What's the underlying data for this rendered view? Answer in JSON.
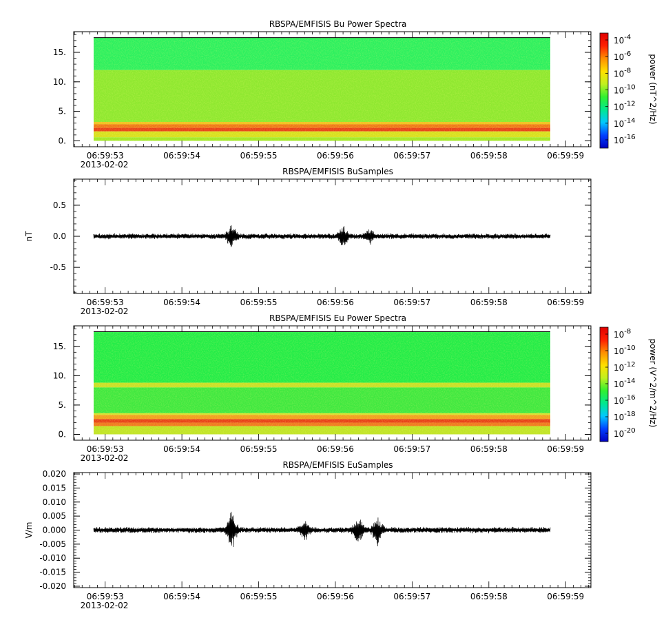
{
  "chart_data": [
    {
      "type": "heatmap",
      "title": "RBSPA/EMFISIS  Bu Power Spectra",
      "ylabel": "",
      "ylim": [
        -1,
        18.5
      ],
      "yticks": [
        "0.",
        "5.",
        "10.",
        "15."
      ],
      "ytick_values": [
        0,
        5,
        10,
        15
      ],
      "xticks": [
        "06:59:53",
        "06:59:54",
        "06:59:55",
        "06:59:56",
        "06:59:57",
        "06:59:58",
        "06:59:59"
      ],
      "xdate": "2013-02-02",
      "data_range": [
        "06:59:52.85",
        "06:59:58.80"
      ],
      "freq_range": [
        0,
        17.5
      ],
      "bands": [
        {
          "from": 12.0,
          "to": 17.5,
          "color": "#2df05f"
        },
        {
          "from": 3.2,
          "to": 12.0,
          "color": "#8fe830"
        },
        {
          "from": 2.8,
          "to": 3.2,
          "color": "#f0c020"
        },
        {
          "from": 2.2,
          "to": 2.8,
          "color": "#f07818"
        },
        {
          "from": 1.6,
          "to": 2.2,
          "color": "#e84018"
        },
        {
          "from": 0.6,
          "to": 1.6,
          "color": "#d8e020"
        },
        {
          "from": 0.0,
          "to": 0.6,
          "color": "#a0e828"
        }
      ],
      "colorbar": {
        "label": "power (nT^2/Hz)",
        "ticks": [
          {
            "base": "10",
            "exp": "-4"
          },
          {
            "base": "10",
            "exp": "-6"
          },
          {
            "base": "10",
            "exp": "-8"
          },
          {
            "base": "10",
            "exp": "-10"
          },
          {
            "base": "10",
            "exp": "-12"
          },
          {
            "base": "10",
            "exp": "-14"
          },
          {
            "base": "10",
            "exp": "-16"
          }
        ]
      }
    },
    {
      "type": "line",
      "title": "RBSPA/EMFISIS  BuSamples",
      "ylabel": "nT",
      "ylim": [
        -0.92,
        0.92
      ],
      "yticks": [
        "0.5",
        "0.0",
        "-0.5"
      ],
      "ytick_values": [
        0.5,
        0.0,
        -0.5
      ],
      "xticks": [
        "06:59:53",
        "06:59:54",
        "06:59:55",
        "06:59:56",
        "06:59:57",
        "06:59:58",
        "06:59:59"
      ],
      "xdate": "2013-02-02",
      "data_range": [
        "06:59:52.85",
        "06:59:58.80"
      ],
      "amplitude": 0.05,
      "bursts": [
        {
          "t": 54.65,
          "amp": 0.18
        },
        {
          "t": 56.1,
          "amp": 0.18
        },
        {
          "t": 56.45,
          "amp": 0.1
        }
      ]
    },
    {
      "type": "heatmap",
      "title": "RBSPA/EMFISIS  Eu Power Spectra",
      "ylabel": "",
      "ylim": [
        -1,
        18.5
      ],
      "yticks": [
        "0.",
        "5.",
        "10.",
        "15."
      ],
      "ytick_values": [
        0,
        5,
        10,
        15
      ],
      "xticks": [
        "06:59:53",
        "06:59:54",
        "06:59:55",
        "06:59:56",
        "06:59:57",
        "06:59:58",
        "06:59:59"
      ],
      "xdate": "2013-02-02",
      "data_range": [
        "06:59:52.85",
        "06:59:58.80"
      ],
      "freq_range": [
        0,
        17.5
      ],
      "bands": [
        {
          "from": 8.8,
          "to": 17.5,
          "color": "#24ec48"
        },
        {
          "from": 8.0,
          "to": 8.8,
          "color": "#c8e028"
        },
        {
          "from": 3.6,
          "to": 8.0,
          "color": "#40e840"
        },
        {
          "from": 3.3,
          "to": 3.6,
          "color": "#d8e030"
        },
        {
          "from": 2.6,
          "to": 3.3,
          "color": "#f0a020"
        },
        {
          "from": 2.0,
          "to": 2.6,
          "color": "#e84018"
        },
        {
          "from": 1.4,
          "to": 2.0,
          "color": "#f07820"
        },
        {
          "from": 0.0,
          "to": 1.4,
          "color": "#c0e428"
        }
      ],
      "colorbar": {
        "label": "power (V^2/m^2/Hz)",
        "ticks": [
          {
            "base": "10",
            "exp": "-8"
          },
          {
            "base": "10",
            "exp": "-10"
          },
          {
            "base": "10",
            "exp": "-12"
          },
          {
            "base": "10",
            "exp": "-14"
          },
          {
            "base": "10",
            "exp": "-16"
          },
          {
            "base": "10",
            "exp": "-18"
          },
          {
            "base": "10",
            "exp": "-20"
          }
        ]
      }
    },
    {
      "type": "line",
      "title": "RBSPA/EMFISIS  EuSamples",
      "ylabel": "V/m",
      "ylim": [
        -0.0205,
        0.0205
      ],
      "yticks": [
        "0.020",
        "0.015",
        "0.010",
        "0.005",
        "0.000",
        "-0.005",
        "-0.010",
        "-0.015",
        "-0.020"
      ],
      "ytick_values": [
        0.02,
        0.015,
        0.01,
        0.005,
        0.0,
        -0.005,
        -0.01,
        -0.015,
        -0.02
      ],
      "xticks": [
        "06:59:53",
        "06:59:54",
        "06:59:55",
        "06:59:56",
        "06:59:57",
        "06:59:58",
        "06:59:59"
      ],
      "xdate": "2013-02-02",
      "data_range": [
        "06:59:52.85",
        "06:59:58.80"
      ],
      "amplitude": 0.0012,
      "bursts": [
        {
          "t": 54.65,
          "amp": 0.007
        },
        {
          "t": 55.6,
          "amp": 0.003
        },
        {
          "t": 56.3,
          "amp": 0.005
        },
        {
          "t": 56.55,
          "amp": 0.005
        }
      ]
    }
  ],
  "colors": {
    "axis": "#000000",
    "trace": "#000000",
    "colormap": [
      "#0000c0",
      "#0040ff",
      "#00c8ff",
      "#00e890",
      "#30f030",
      "#c0f020",
      "#ffe000",
      "#ff9000",
      "#ff2000",
      "#e00000"
    ]
  }
}
